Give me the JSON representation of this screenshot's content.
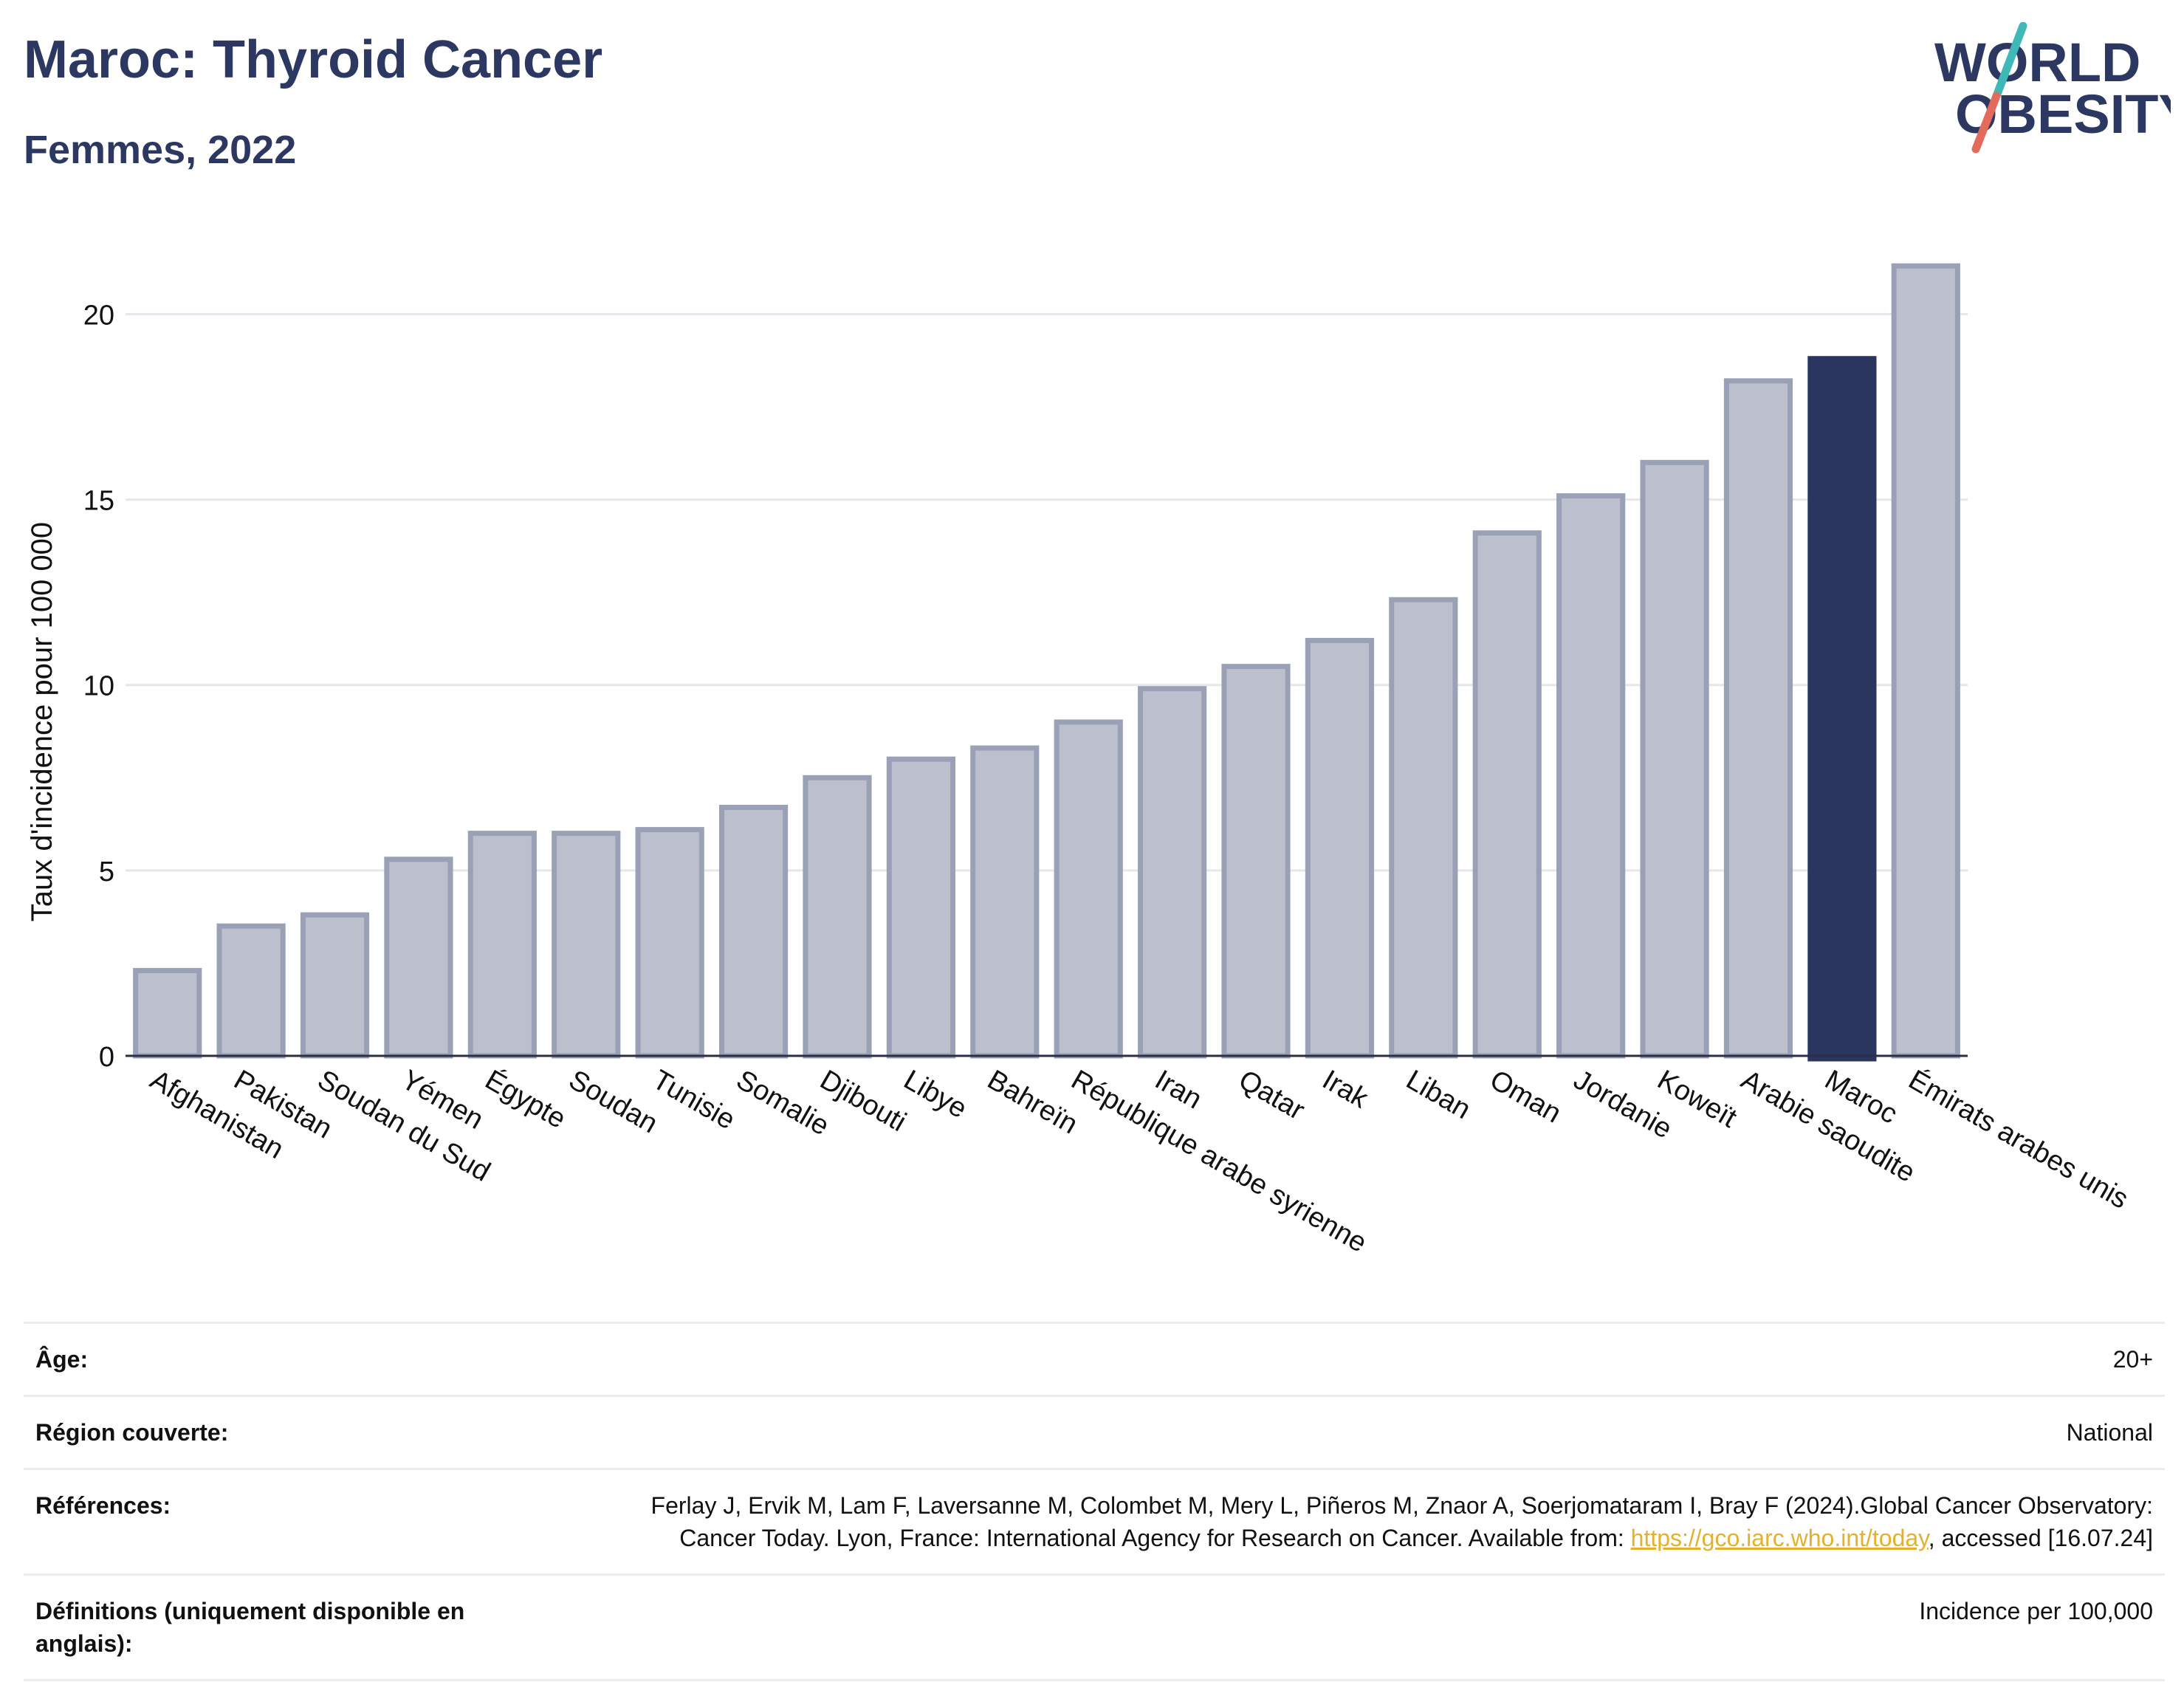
{
  "header": {
    "title": "Maroc: Thyroid Cancer",
    "subtitle": "Femmes, 2022",
    "logo_line1": "WORLD",
    "logo_line2": "OBESITY"
  },
  "colors": {
    "title": "#2c3862",
    "bar": "#bcc0cd",
    "bar_outline": "#9aa0b5",
    "highlight": "#2a3560",
    "grid": "#e6e6ec",
    "axis": "#2a2f45",
    "link": "#e3b12c",
    "logo_teal": "#3fb8b8",
    "logo_coral": "#e36b5c"
  },
  "chart_data": {
    "type": "bar",
    "ylabel": "Taux d'incidence pour 100 000",
    "ylim": [
      0,
      22
    ],
    "yticks": [
      0,
      5,
      10,
      15,
      20
    ],
    "grid": true,
    "highlight": "Maroc",
    "categories": [
      "Afghanistan",
      "Pakistan",
      "Soudan du Sud",
      "Yémen",
      "Égypte",
      "Soudan",
      "Tunisie",
      "Somalie",
      "Djibouti",
      "Libye",
      "Bahreïn",
      "République arabe syrienne",
      "Iran",
      "Qatar",
      "Irak",
      "Liban",
      "Oman",
      "Jordanie",
      "Koweït",
      "Arabie saoudite",
      "Maroc",
      "Émirats arabes unis"
    ],
    "values": [
      2.3,
      3.5,
      3.8,
      5.3,
      6.0,
      6.0,
      6.1,
      6.7,
      7.5,
      8.0,
      8.3,
      9.0,
      9.9,
      10.5,
      11.2,
      12.3,
      14.1,
      15.1,
      16.0,
      18.2,
      18.8,
      21.3
    ]
  },
  "meta": {
    "age_label": "Âge:",
    "age_value": "20+",
    "region_label": "Région couverte:",
    "region_value": "National",
    "ref_label": "Références:",
    "ref_text": "Ferlay J, Ervik M, Lam F, Laversanne M, Colombet M, Mery L, Piñeros M, Znaor A, Soerjomataram I, Bray F (2024).Global Cancer Observatory: Cancer Today. Lyon, France: International Agency for Research on Cancer. Available from: ",
    "ref_link": "https://gco.iarc.who.int/today",
    "ref_after": ", accessed [16.07.24]",
    "def_label": "Définitions (uniquement disponible en anglais):",
    "def_value": "Incidence per 100,000"
  }
}
